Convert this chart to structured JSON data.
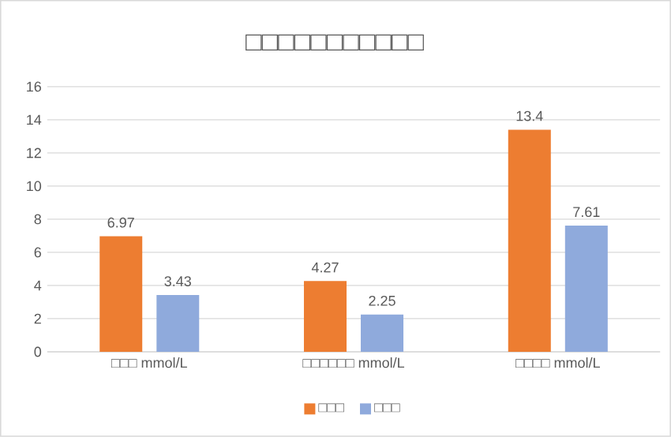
{
  "chart_data": {
    "type": "bar",
    "title": "□□□□□□□□□□□",
    "categories": [
      "□□□ mmol/L",
      "□□□□□□ mmol/L",
      "□□□□ mmol/L"
    ],
    "series": [
      {
        "name": "□□□",
        "color": "#ed7d31",
        "values": [
          6.97,
          4.27,
          13.4
        ]
      },
      {
        "name": "□□□",
        "color": "#8faadc",
        "values": [
          3.43,
          2.25,
          7.61
        ]
      }
    ],
    "ylim": [
      0,
      16
    ],
    "yticks": [
      0,
      2,
      4,
      6,
      8,
      10,
      12,
      14,
      16
    ],
    "grid": "y",
    "legend": "bottom",
    "data_labels": true
  }
}
